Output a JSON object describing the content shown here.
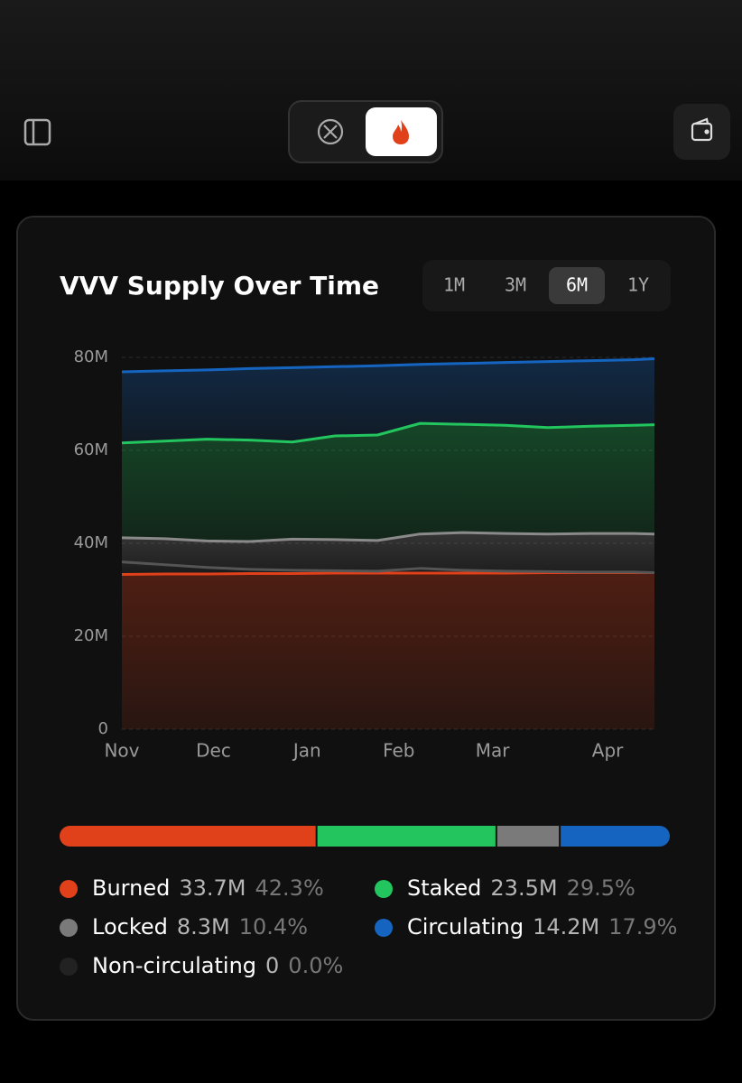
{
  "chart_data": {
    "type": "stacked_area",
    "title": "VVV Supply Over Time",
    "ranges": [
      "1M",
      "3M",
      "6M",
      "1Y"
    ],
    "active_range": "6M",
    "x": [
      0,
      2,
      4,
      6,
      8,
      10,
      12,
      14,
      16,
      18,
      20,
      22,
      24,
      25
    ],
    "xlim": [
      0,
      25
    ],
    "xticks": [
      {
        "value": 0,
        "label": "Nov"
      },
      {
        "value": 4.3,
        "label": "Dec"
      },
      {
        "value": 8.7,
        "label": "Jan"
      },
      {
        "value": 13,
        "label": "Feb"
      },
      {
        "value": 17.4,
        "label": "Mar"
      },
      {
        "value": 22.8,
        "label": "Apr"
      }
    ],
    "ylim": [
      0,
      80
    ],
    "yticks": [
      0,
      {
        "value": 20,
        "label": "20M"
      },
      {
        "value": 40,
        "label": "40M"
      },
      {
        "value": 60,
        "label": "60M"
      },
      {
        "value": 80,
        "label": "80M"
      }
    ],
    "grid": true,
    "series": [
      {
        "name": "Burned",
        "color": "#e0401a",
        "values": [
          33.3,
          33.4,
          33.4,
          33.5,
          33.5,
          33.6,
          33.6,
          33.6,
          33.6,
          33.6,
          33.7,
          33.7,
          33.7,
          33.7
        ]
      },
      {
        "name": "Non-circulating",
        "color": "#555555",
        "values": [
          2.7,
          2.0,
          1.4,
          0.9,
          0.7,
          0.5,
          0.4,
          1.0,
          0.6,
          0.4,
          0.2,
          0.1,
          0.1,
          0
        ]
      },
      {
        "name": "Locked",
        "color": "#8a8a8a",
        "values": [
          5.2,
          5.6,
          5.7,
          6.0,
          6.7,
          6.7,
          6.6,
          7.4,
          8.1,
          8.1,
          8.1,
          8.3,
          8.3,
          8.3
        ]
      },
      {
        "name": "Staked",
        "color": "#22c55e",
        "values": [
          20.4,
          21.0,
          21.9,
          21.8,
          20.9,
          22.3,
          22.7,
          23.8,
          23.3,
          23.3,
          22.9,
          23.1,
          23.3,
          23.5
        ]
      },
      {
        "name": "Circulating",
        "color": "#1565c0",
        "values": [
          15.3,
          15.1,
          14.9,
          15.4,
          16.0,
          14.9,
          14.9,
          12.7,
          13.1,
          13.5,
          14.2,
          14.1,
          14.1,
          14.2
        ]
      }
    ],
    "summary": [
      {
        "name": "Burned",
        "color": "#e0401a",
        "amount": 33.7,
        "amount_label": "33.7M",
        "share": 42.3,
        "share_label": "42.3%"
      },
      {
        "name": "Staked",
        "color": "#22c55e",
        "amount": 23.5,
        "amount_label": "23.5M",
        "share": 29.5,
        "share_label": "29.5%"
      },
      {
        "name": "Locked",
        "color": "#7a7a7a",
        "amount": 8.3,
        "amount_label": "8.3M",
        "share": 10.4,
        "share_label": "10.4%"
      },
      {
        "name": "Circulating",
        "color": "#1565c0",
        "amount": 14.2,
        "amount_label": "14.2M",
        "share": 17.9,
        "share_label": "17.9%"
      },
      {
        "name": "Non-circulating",
        "color": "#222222",
        "amount": 0,
        "share": 0.0,
        "share_label": "0.0%"
      }
    ],
    "bar_order": [
      0,
      1,
      2,
      3
    ]
  }
}
